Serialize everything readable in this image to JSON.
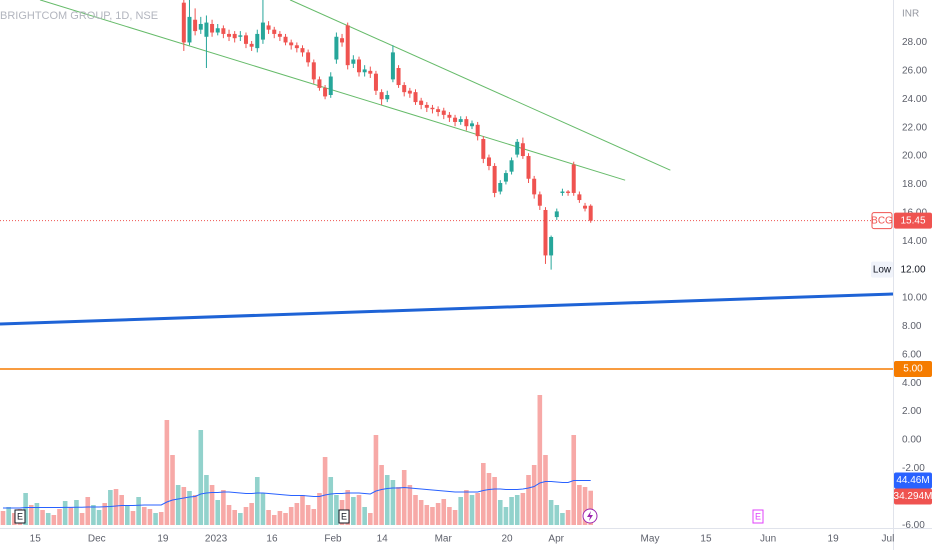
{
  "chart_data": {
    "type": "candlestick",
    "title": "BRIGHTCOM GROUP, 1D, NSE",
    "currency": "INR",
    "symbol": "BCG",
    "xlim": [
      -0.53,
      157.5
    ],
    "xticks": [
      {
        "value": 5.7,
        "label": "15"
      },
      {
        "value": 16.6,
        "label": "Dec"
      },
      {
        "value": 28.3,
        "label": "19"
      },
      {
        "value": 37.7,
        "label": "2023"
      },
      {
        "value": 47.6,
        "label": "16"
      },
      {
        "value": 58.4,
        "label": "Feb"
      },
      {
        "value": 67.1,
        "label": "14"
      },
      {
        "value": 77.9,
        "label": "Mar"
      },
      {
        "value": 89.2,
        "label": "20"
      },
      {
        "value": 97.9,
        "label": "Apr"
      },
      {
        "value": 114.5,
        "label": "May"
      },
      {
        "value": 124.4,
        "label": "15"
      },
      {
        "value": 135.4,
        "label": "Jun"
      },
      {
        "value": 146.9,
        "label": "19"
      },
      {
        "value": 156.6,
        "label": "Jul"
      }
    ],
    "ylim": [
      -6.34,
      30.99
    ],
    "yticks": [
      {
        "value": 28,
        "label": "28.00"
      },
      {
        "value": 26,
        "label": "26.00"
      },
      {
        "value": 24,
        "label": "24.00"
      },
      {
        "value": 22,
        "label": "22.00"
      },
      {
        "value": 20,
        "label": "20.00"
      },
      {
        "value": 18,
        "label": "18.00"
      },
      {
        "value": 16,
        "label": "16.00"
      },
      {
        "value": 14,
        "label": "14.00"
      },
      {
        "value": 12,
        "label": "12.00"
      },
      {
        "value": 10,
        "label": "10.00"
      },
      {
        "value": 8,
        "label": "8.00"
      },
      {
        "value": 6,
        "label": "6.00"
      },
      {
        "value": 4,
        "label": "4.00"
      },
      {
        "value": 2,
        "label": "2.00"
      },
      {
        "value": 0,
        "label": "0.00"
      },
      {
        "value": -2,
        "label": "-2.00"
      },
      {
        "value": -4,
        "label": "-4.00"
      },
      {
        "value": -6,
        "label": "-6.00"
      }
    ],
    "grid": false,
    "up_color": "#26a69a",
    "down_color": "#ef5350",
    "volume_up_color": "#92d2cc",
    "volume_down_color": "#f7a9a7",
    "open": [
      null,
      null,
      null,
      null,
      null,
      null,
      null,
      null,
      null,
      null,
      null,
      null,
      null,
      null,
      null,
      null,
      null,
      null,
      null,
      null,
      null,
      null,
      null,
      null,
      null,
      null,
      null,
      null,
      null,
      null,
      null,
      null,
      30.8,
      28.0,
      29.6,
      28.9,
      28.4,
      29.3,
      28.7,
      29.0,
      28.6,
      28.6,
      28.4,
      28.5,
      27.9,
      27.6,
      28.2,
      29.2,
      28.9,
      28.6,
      28.4,
      28.0,
      27.8,
      27.6,
      27.3,
      26.6,
      25.4,
      24.8,
      24.3,
      26.8,
      28.3,
      29.2,
      26.5,
      26.8,
      25.9,
      26.0,
      25.8,
      24.5,
      24.0,
      25.4,
      26.2,
      25.0,
      24.6,
      24.5,
      23.9,
      23.6,
      23.4,
      23.3,
      23.2,
      22.9,
      22.7,
      22.4,
      22.6,
      22.1,
      22.2,
      21.2,
      19.9,
      19.3,
      17.5,
      18.2,
      18.9,
      20.1,
      20.9,
      20.0,
      18.4,
      17.3,
      16.2,
      13.0,
      15.7,
      17.4,
      17.5,
      19.4,
      17.3,
      16.5,
      16.5
    ],
    "high": [
      null,
      null,
      null,
      null,
      null,
      null,
      null,
      null,
      null,
      null,
      null,
      null,
      null,
      null,
      null,
      null,
      null,
      null,
      null,
      null,
      null,
      null,
      null,
      null,
      null,
      null,
      null,
      null,
      null,
      null,
      null,
      null,
      31.5,
      31.2,
      30.4,
      29.8,
      29.9,
      29.6,
      29.3,
      29.2,
      28.9,
      28.8,
      28.8,
      28.7,
      28.1,
      28.9,
      31.2,
      29.5,
      29.1,
      28.8,
      28.6,
      28.2,
      28.0,
      27.8,
      27.5,
      26.8,
      25.6,
      25.0,
      25.9,
      28.7,
      28.6,
      29.4,
      27.1,
      27.0,
      26.4,
      26.3,
      26.0,
      24.7,
      24.6,
      27.8,
      26.4,
      25.2,
      24.8,
      24.7,
      24.1,
      23.8,
      23.6,
      23.5,
      23.4,
      23.1,
      22.9,
      22.8,
      22.8,
      22.5,
      22.4,
      21.4,
      20.1,
      19.5,
      18.3,
      19.0,
      19.9,
      21.2,
      21.3,
      20.2,
      18.6,
      17.5,
      16.4,
      14.4,
      16.3,
      17.7,
      17.6,
      19.6,
      17.5,
      16.7,
      16.6
    ],
    "low": [
      null,
      null,
      null,
      null,
      null,
      null,
      null,
      null,
      null,
      null,
      null,
      null,
      null,
      null,
      null,
      null,
      null,
      null,
      null,
      null,
      null,
      null,
      null,
      null,
      null,
      null,
      null,
      null,
      null,
      null,
      null,
      null,
      27.4,
      27.8,
      28.5,
      28.6,
      26.2,
      28.4,
      28.5,
      28.3,
      28.1,
      28.0,
      28.1,
      27.6,
      27.4,
      27.3,
      27.9,
      28.6,
      28.3,
      28.1,
      27.8,
      27.5,
      27.3,
      27.0,
      26.3,
      25.1,
      24.6,
      24.0,
      24.1,
      26.5,
      27.7,
      26.1,
      26.2,
      25.6,
      25.6,
      25.5,
      24.3,
      23.6,
      23.8,
      25.2,
      24.8,
      24.2,
      24.1,
      23.6,
      23.3,
      23.1,
      23.0,
      22.8,
      22.6,
      22.4,
      22.1,
      22.2,
      21.8,
      21.9,
      21.1,
      19.5,
      19.0,
      17.1,
      17.3,
      18.0,
      18.7,
      19.9,
      19.8,
      18.1,
      17.0,
      16.2,
      12.4,
      12.0,
      15.5,
      17.2,
      17.2,
      17.2,
      16.7,
      16.1,
      15.3
    ],
    "close": [
      null,
      null,
      null,
      null,
      null,
      null,
      null,
      null,
      null,
      null,
      null,
      null,
      null,
      null,
      null,
      null,
      null,
      null,
      null,
      null,
      null,
      null,
      null,
      null,
      null,
      null,
      null,
      null,
      null,
      null,
      null,
      null,
      28.0,
      29.8,
      28.8,
      29.3,
      29.4,
      28.7,
      29.0,
      28.6,
      28.4,
      28.3,
      28.5,
      27.9,
      27.7,
      28.6,
      29.4,
      28.9,
      28.6,
      28.4,
      28.0,
      27.8,
      27.6,
      27.3,
      26.6,
      25.4,
      24.8,
      24.2,
      25.6,
      28.4,
      28.0,
      26.4,
      26.8,
      25.9,
      26.1,
      25.8,
      24.6,
      24.0,
      24.3,
      27.3,
      25.0,
      24.5,
      24.4,
      23.8,
      23.6,
      23.4,
      23.3,
      23.1,
      22.9,
      22.7,
      22.4,
      22.6,
      22.1,
      22.3,
      21.4,
      19.8,
      19.3,
      17.4,
      18.1,
      18.8,
      19.7,
      21.0,
      20.0,
      18.4,
      17.3,
      16.5,
      13.0,
      14.3,
      16.1,
      17.5,
      17.4,
      17.4,
      16.9,
      16.3,
      15.45
    ],
    "early_volume_up": [
      false,
      true,
      false,
      false,
      true,
      false,
      true,
      false,
      true,
      false,
      false,
      true,
      false,
      true,
      false,
      false,
      true,
      true,
      false,
      true,
      false,
      false,
      true,
      false,
      true,
      false,
      false,
      true,
      false,
      false,
      false,
      true
    ],
    "volumes": [
      14,
      18,
      12,
      16,
      32,
      20,
      22,
      15,
      12,
      10,
      16,
      24,
      18,
      25,
      12,
      28,
      20,
      15,
      22,
      35,
      36,
      30,
      20,
      14,
      28,
      18,
      16,
      12,
      13,
      105,
      70,
      40,
      38,
      34,
      30,
      95,
      50,
      40,
      25,
      35,
      20,
      15,
      12,
      18,
      22,
      48,
      32,
      15,
      10,
      14,
      12,
      18,
      22,
      30,
      20,
      16,
      32,
      68,
      48,
      30,
      25,
      35,
      28,
      30,
      18,
      12,
      90,
      60,
      50,
      45,
      38,
      55,
      40,
      30,
      25,
      20,
      18,
      22,
      26,
      18,
      15,
      28,
      35,
      30,
      32,
      62,
      52,
      48,
      25,
      18,
      28,
      30,
      32,
      50,
      60,
      130,
      70,
      25,
      20,
      12,
      15,
      90,
      40,
      38,
      34.294
    ],
    "volume_ma": [
      17,
      17,
      17,
      17,
      17.5,
      17.5,
      17.5,
      17.5,
      17.5,
      17.5,
      17.5,
      17.6,
      17.6,
      17.8,
      17.8,
      18,
      18,
      18,
      18.2,
      18.5,
      19,
      19.5,
      19.5,
      19.5,
      19.8,
      20,
      20,
      20,
      20,
      23,
      25,
      26,
      27,
      28,
      28.5,
      31,
      32,
      32.5,
      32.5,
      33,
      33,
      32.5,
      32,
      31.5,
      31.5,
      32,
      32,
      31.5,
      31,
      30.5,
      30,
      29.5,
      29.5,
      29.5,
      29,
      28.5,
      28.5,
      30,
      31,
      31.5,
      31.5,
      32,
      32,
      32,
      31.5,
      31,
      34,
      35.5,
      36.5,
      37,
      37,
      37.5,
      37,
      36.5,
      36,
      35.5,
      35,
      34.5,
      34,
      33.5,
      33,
      33,
      33,
      33,
      33,
      34.5,
      35.5,
      36,
      36,
      35.5,
      35.5,
      35.5,
      36,
      37,
      38.5,
      42,
      43.5,
      43.5,
      43,
      42.5,
      42.5,
      44.5,
      44.5,
      44.5,
      44.46
    ],
    "volume_ma_color": "#2962ff",
    "volume_ma_label": "44.46M",
    "volume_label": "34.294M",
    "vlim": [
      0,
      135
    ],
    "trend_lines": [
      {
        "color": "#66bb6a",
        "x": [
          6.55,
          110.1
        ],
        "y": [
          31.0,
          18.3
        ]
      },
      {
        "color": "#66bb6a",
        "x": [
          50.8,
          118.1
        ],
        "y": [
          31.0,
          19.0
        ]
      },
      {
        "color": "#1e63d6",
        "x": [
          -0.53,
          157.5
        ],
        "y": [
          8.17,
          10.28
        ]
      }
    ],
    "horizontal_lines": [
      {
        "value": 5,
        "label": "5.00",
        "color": "#f57c00"
      }
    ],
    "low_marker": {
      "name": "Low",
      "value": 12,
      "label": "12.00"
    },
    "event_labels": [
      "E",
      "E",
      "E"
    ]
  }
}
